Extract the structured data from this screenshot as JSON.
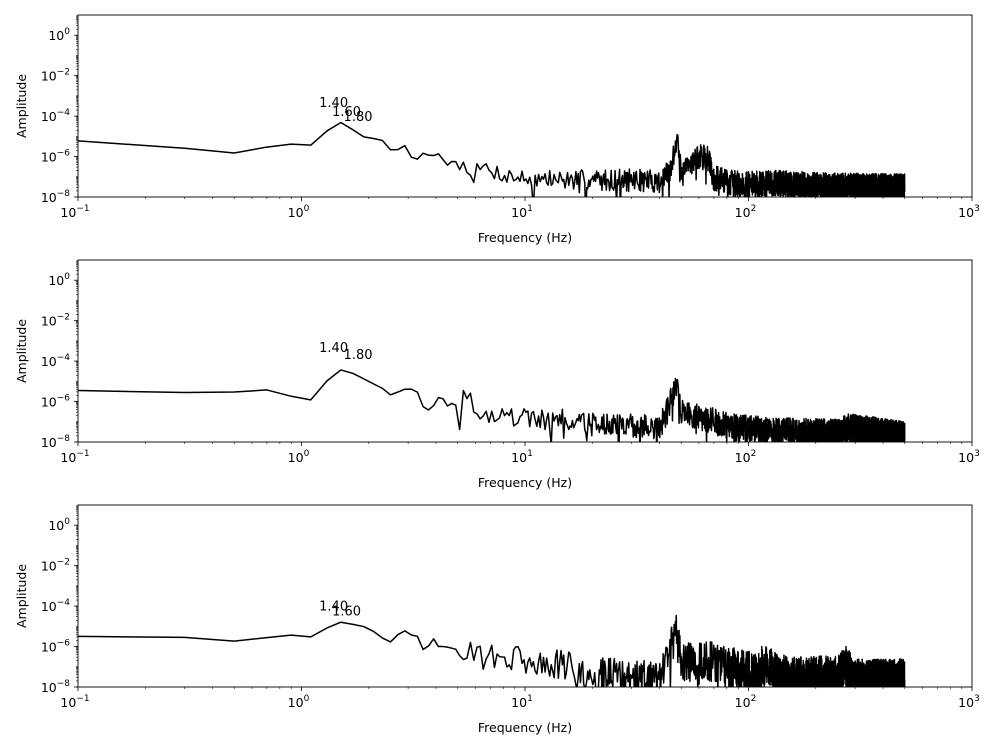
{
  "chart_data": [
    {
      "type": "line",
      "xlabel": "Frequency (Hz)",
      "ylabel": "Amplitude",
      "xscale": "log",
      "yscale": "log",
      "xlim": [
        0.1,
        1000
      ],
      "ylim": [
        1e-08,
        10
      ],
      "line_color": "#000000",
      "x_ticks": [
        {
          "base": "10",
          "exp": "−1",
          "value": 0.1
        },
        {
          "base": "10",
          "exp": "0",
          "value": 1
        },
        {
          "base": "10",
          "exp": "1",
          "value": 10
        },
        {
          "base": "10",
          "exp": "2",
          "value": 100
        },
        {
          "base": "10",
          "exp": "3",
          "value": 1000
        }
      ],
      "y_ticks": [
        {
          "base": "10",
          "exp": "−8",
          "value": 1e-08
        },
        {
          "base": "10",
          "exp": "−6",
          "value": 1e-06
        },
        {
          "base": "10",
          "exp": "−4",
          "value": 0.0001
        },
        {
          "base": "10",
          "exp": "−2",
          "value": 0.01
        },
        {
          "base": "10",
          "exp": "0",
          "value": 1
        }
      ],
      "annotations": [
        {
          "text": "1.40",
          "x": 1.4,
          "y": 0.0005
        },
        {
          "text": "1.60",
          "x": 1.6,
          "y": 0.00018
        },
        {
          "text": "1.80",
          "x": 1.8,
          "y": 0.0001
        }
      ],
      "series": [
        {
          "anchors": [
            [
              0.1,
              6e-06
            ],
            [
              0.2,
              6e-06
            ],
            [
              0.4,
              1.4e-06
            ],
            [
              0.6,
              1.6e-06
            ],
            [
              0.8,
              5e-06
            ],
            [
              1.0,
              3.5e-06
            ],
            [
              1.2,
              3.8e-06
            ],
            [
              1.4,
              8e-05
            ],
            [
              1.6,
              3e-05
            ],
            [
              1.8,
              1.5e-05
            ],
            [
              2.0,
              6e-06
            ],
            [
              2.2,
              1e-05
            ],
            [
              2.4,
              4e-06
            ],
            [
              2.6,
              1.2e-06
            ],
            [
              2.8,
              4e-06
            ],
            [
              3.0,
              3e-06
            ],
            [
              3.2,
              3e-07
            ],
            [
              3.4,
              1.8e-06
            ],
            [
              3.6,
              1.2e-06
            ],
            [
              4.0,
              1.1e-06
            ],
            [
              4.2,
              1.7e-06
            ],
            [
              4.4,
              3e-07
            ],
            [
              4.8,
              7e-07
            ],
            [
              5.2,
              3e-07
            ],
            [
              5.4,
              6e-07
            ],
            [
              5.8,
              1e-07
            ],
            [
              6.4,
              3e-07
            ],
            [
              8,
              1.3e-07
            ],
            [
              10,
              8e-08
            ],
            [
              15,
              7e-08
            ],
            [
              20,
              7e-08
            ],
            [
              30,
              7e-08
            ],
            [
              40,
              6e-08
            ],
            [
              45,
              2e-07
            ],
            [
              48,
              1.2e-05
            ],
            [
              50,
              1e-07
            ],
            [
              55,
              5e-07
            ],
            [
              60,
              1e-06
            ],
            [
              66,
              8e-07
            ],
            [
              70,
              8e-08
            ],
            [
              80,
              6e-08
            ],
            [
              100,
              4e-08
            ],
            [
              130,
              5e-08
            ],
            [
              200,
              3.5e-08
            ],
            [
              500,
              3e-08
            ]
          ],
          "spikes": [
            [
              48,
              1.2e-05
            ],
            [
              62,
              1.1e-06
            ],
            [
              65,
              1e-06
            ]
          ],
          "jitter": 1.1,
          "seed": 7
        }
      ]
    },
    {
      "type": "line",
      "xlabel": "Frequency (Hz)",
      "ylabel": "Amplitude",
      "xscale": "log",
      "yscale": "log",
      "xlim": [
        0.1,
        1000
      ],
      "ylim": [
        1e-08,
        10
      ],
      "line_color": "#000000",
      "x_ticks": [
        {
          "base": "10",
          "exp": "−1",
          "value": 0.1
        },
        {
          "base": "10",
          "exp": "0",
          "value": 1
        },
        {
          "base": "10",
          "exp": "1",
          "value": 10
        },
        {
          "base": "10",
          "exp": "2",
          "value": 100
        },
        {
          "base": "10",
          "exp": "3",
          "value": 1000
        }
      ],
      "y_ticks": [
        {
          "base": "10",
          "exp": "−8",
          "value": 1e-08
        },
        {
          "base": "10",
          "exp": "−6",
          "value": 1e-06
        },
        {
          "base": "10",
          "exp": "−4",
          "value": 0.0001
        },
        {
          "base": "10",
          "exp": "−2",
          "value": 0.01
        },
        {
          "base": "10",
          "exp": "0",
          "value": 1
        }
      ],
      "annotations": [
        {
          "text": "1.40",
          "x": 1.4,
          "y": 0.0005
        },
        {
          "text": "1.80",
          "x": 1.8,
          "y": 0.00022
        }
      ],
      "series": [
        {
          "anchors": [
            [
              0.1,
              3.5e-06
            ],
            [
              0.2,
              3.5e-06
            ],
            [
              0.4,
              2.4e-06
            ],
            [
              0.6,
              3.5e-06
            ],
            [
              0.8,
              4e-06
            ],
            [
              1.0,
              9e-07
            ],
            [
              1.2,
              1.6e-06
            ],
            [
              1.4,
              6e-05
            ],
            [
              1.6,
              2.3e-05
            ],
            [
              1.8,
              2.6e-05
            ],
            [
              2.0,
              7e-06
            ],
            [
              2.2,
              8e-06
            ],
            [
              2.4,
              2.6e-06
            ],
            [
              2.6,
              1.8e-06
            ],
            [
              2.8,
              4.8e-06
            ],
            [
              3.0,
              3.5e-06
            ],
            [
              3.2,
              4.8e-06
            ],
            [
              3.4,
              1.8e-06
            ],
            [
              3.6,
              1.8e-07
            ],
            [
              3.8,
              8e-07
            ],
            [
              4.0,
              5e-07
            ],
            [
              4.2,
              4.8e-06
            ],
            [
              4.4,
              4e-07
            ],
            [
              4.6,
              9e-07
            ],
            [
              5.0,
              6e-07
            ],
            [
              5.6,
              5e-06
            ],
            [
              6.0,
              3e-07
            ],
            [
              8,
              2e-07
            ],
            [
              10,
              1.5e-07
            ],
            [
              15,
              1.2e-07
            ],
            [
              20,
              8e-08
            ],
            [
              30,
              6e-08
            ],
            [
              40,
              5e-08
            ],
            [
              44,
              5e-07
            ],
            [
              48,
              1.2e-05
            ],
            [
              50,
              3e-07
            ],
            [
              60,
              2e-07
            ],
            [
              70,
              1e-07
            ],
            [
              80,
              6e-08
            ],
            [
              100,
              4e-08
            ],
            [
              150,
              3e-08
            ],
            [
              250,
              2.5e-08
            ],
            [
              280,
              5e-08
            ],
            [
              500,
              2e-08
            ]
          ],
          "spikes": [
            [
              48,
              1.2e-05
            ],
            [
              44,
              5e-07
            ]
          ],
          "jitter": 1.2,
          "seed": 19
        }
      ]
    },
    {
      "type": "line",
      "xlabel": "Frequency (Hz)",
      "ylabel": "Amplitude",
      "xscale": "log",
      "yscale": "log",
      "xlim": [
        0.1,
        1000
      ],
      "ylim": [
        1e-08,
        10
      ],
      "line_color": "#000000",
      "x_ticks": [
        {
          "base": "10",
          "exp": "−1",
          "value": 0.1
        },
        {
          "base": "10",
          "exp": "0",
          "value": 1
        },
        {
          "base": "10",
          "exp": "1",
          "value": 10
        },
        {
          "base": "10",
          "exp": "2",
          "value": 100
        },
        {
          "base": "10",
          "exp": "3",
          "value": 1000
        }
      ],
      "y_ticks": [
        {
          "base": "10",
          "exp": "−8",
          "value": 1e-08
        },
        {
          "base": "10",
          "exp": "−6",
          "value": 1e-06
        },
        {
          "base": "10",
          "exp": "−4",
          "value": 0.0001
        },
        {
          "base": "10",
          "exp": "−2",
          "value": 0.01
        },
        {
          "base": "10",
          "exp": "0",
          "value": 1
        }
      ],
      "annotations": [
        {
          "text": "1.40",
          "x": 1.4,
          "y": 0.00011
        },
        {
          "text": "1.60",
          "x": 1.6,
          "y": 6e-05
        }
      ],
      "series": [
        {
          "anchors": [
            [
              0.1,
              3.2e-06
            ],
            [
              0.2,
              3.2e-06
            ],
            [
              0.4,
              2.6e-06
            ],
            [
              0.6,
              1.4e-06
            ],
            [
              0.8,
              5e-06
            ],
            [
              1.0,
              2.8e-06
            ],
            [
              1.2,
              3.2e-06
            ],
            [
              1.4,
              2e-05
            ],
            [
              1.6,
              1.3e-05
            ],
            [
              1.8,
              1.2e-05
            ],
            [
              2.0,
              8e-06
            ],
            [
              2.2,
              4e-06
            ],
            [
              2.4,
              1.8e-06
            ],
            [
              2.6,
              1.6e-06
            ],
            [
              2.8,
              9e-06
            ],
            [
              3.0,
              4e-06
            ],
            [
              3.4,
              3e-06
            ],
            [
              3.6,
              1.8e-07
            ],
            [
              3.8,
              6e-06
            ],
            [
              4.0,
              1e-06
            ],
            [
              4.4,
              1e-06
            ],
            [
              5.0,
              7e-07
            ],
            [
              5.6,
              1.2e-06
            ],
            [
              6.0,
              3e-07
            ],
            [
              8,
              2.5e-07
            ],
            [
              10,
              2e-07
            ],
            [
              15,
              1e-07
            ],
            [
              20,
              4e-08
            ],
            [
              30,
              3e-08
            ],
            [
              40,
              2e-08
            ],
            [
              44,
              4e-07
            ],
            [
              48,
              6e-06
            ],
            [
              50,
              2e-07
            ],
            [
              60,
              1.5e-07
            ],
            [
              70,
              2e-07
            ],
            [
              80,
              1e-07
            ],
            [
              100,
              5e-08
            ],
            [
              120,
              1e-07
            ],
            [
              150,
              2.5e-08
            ],
            [
              250,
              3e-08
            ],
            [
              270,
              1e-07
            ],
            [
              300,
              2e-08
            ],
            [
              500,
              2e-08
            ]
          ],
          "spikes": [
            [
              48,
              6e-06
            ],
            [
              44,
              4e-07
            ]
          ],
          "jitter": 1.8,
          "seed": 31
        }
      ]
    }
  ]
}
